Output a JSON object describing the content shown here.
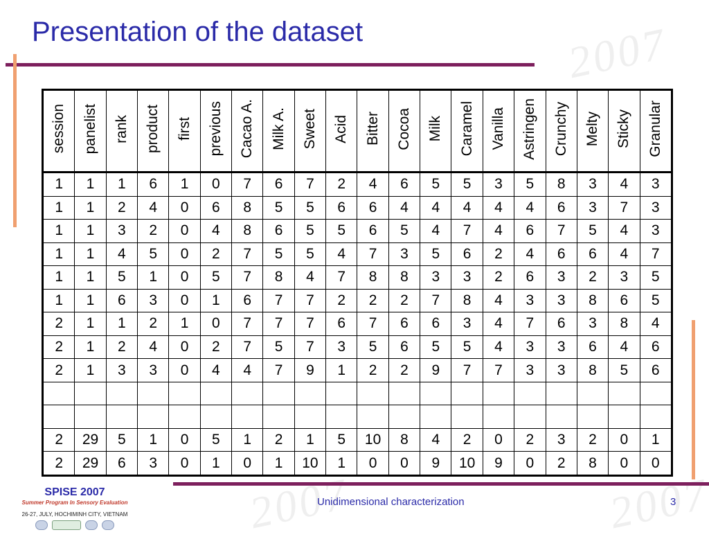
{
  "slide": {
    "title": "Presentation of the dataset",
    "footer_text": "Unidimensional characterization",
    "page_number": "3"
  },
  "logo": {
    "name": "SPISE 2007",
    "subtitle": "Summer Program In Sensory Evaluation",
    "date_place": "26-27, JULY, HOCHIMINH CITY, VIETNAM"
  },
  "colors": {
    "title": "#2a2aa8",
    "rule": "#7d1f5d",
    "accent_bar": "#f0a070"
  },
  "table": {
    "headers": [
      "session",
      "panelist",
      "rank",
      "product",
      "first",
      "previous",
      "Cacao A.",
      "Milk A.",
      "Sweet",
      "Acid",
      "Bitter",
      "Cocoa",
      "Milk",
      "Caramel",
      "Vanilla",
      "Astringen",
      "Crunchy",
      "Melty",
      "Sticky",
      "Granular"
    ],
    "rows": [
      [
        "1",
        "1",
        "1",
        "6",
        "1",
        "0",
        "7",
        "6",
        "7",
        "2",
        "4",
        "6",
        "5",
        "5",
        "3",
        "5",
        "8",
        "3",
        "4",
        "3"
      ],
      [
        "1",
        "1",
        "2",
        "4",
        "0",
        "6",
        "8",
        "5",
        "5",
        "6",
        "6",
        "4",
        "4",
        "4",
        "4",
        "4",
        "6",
        "3",
        "7",
        "3"
      ],
      [
        "1",
        "1",
        "3",
        "2",
        "0",
        "4",
        "8",
        "6",
        "5",
        "5",
        "6",
        "5",
        "4",
        "7",
        "4",
        "6",
        "7",
        "5",
        "4",
        "3"
      ],
      [
        "1",
        "1",
        "4",
        "5",
        "0",
        "2",
        "7",
        "5",
        "5",
        "4",
        "7",
        "3",
        "5",
        "6",
        "2",
        "4",
        "6",
        "6",
        "4",
        "7"
      ],
      [
        "1",
        "1",
        "5",
        "1",
        "0",
        "5",
        "7",
        "8",
        "4",
        "7",
        "8",
        "8",
        "3",
        "3",
        "2",
        "6",
        "3",
        "2",
        "3",
        "5"
      ],
      [
        "1",
        "1",
        "6",
        "3",
        "0",
        "1",
        "6",
        "7",
        "7",
        "2",
        "2",
        "2",
        "7",
        "8",
        "4",
        "3",
        "3",
        "8",
        "6",
        "5"
      ],
      [
        "2",
        "1",
        "1",
        "2",
        "1",
        "0",
        "7",
        "7",
        "7",
        "6",
        "7",
        "6",
        "6",
        "3",
        "4",
        "7",
        "6",
        "3",
        "8",
        "4"
      ],
      [
        "2",
        "1",
        "2",
        "4",
        "0",
        "2",
        "7",
        "5",
        "7",
        "3",
        "5",
        "6",
        "5",
        "5",
        "4",
        "3",
        "3",
        "6",
        "4",
        "6"
      ],
      [
        "2",
        "1",
        "3",
        "3",
        "0",
        "4",
        "4",
        "7",
        "9",
        "1",
        "2",
        "2",
        "9",
        "7",
        "7",
        "3",
        "3",
        "8",
        "5",
        "6"
      ],
      [
        "",
        "",
        "",
        "",
        "",
        "",
        "",
        "",
        "",
        "",
        "",
        "",
        "",
        "",
        "",
        "",
        "",
        "",
        "",
        ""
      ],
      [
        "",
        "",
        "",
        "",
        "",
        "",
        "",
        "",
        "",
        "",
        "",
        "",
        "",
        "",
        "",
        "",
        "",
        "",
        "",
        ""
      ],
      [
        "2",
        "29",
        "5",
        "1",
        "0",
        "5",
        "1",
        "2",
        "1",
        "5",
        "10",
        "8",
        "4",
        "2",
        "0",
        "2",
        "3",
        "2",
        "0",
        "1"
      ],
      [
        "2",
        "29",
        "6",
        "3",
        "0",
        "1",
        "0",
        "1",
        "10",
        "1",
        "0",
        "0",
        "9",
        "10",
        "9",
        "0",
        "2",
        "8",
        "0",
        "0"
      ]
    ]
  }
}
